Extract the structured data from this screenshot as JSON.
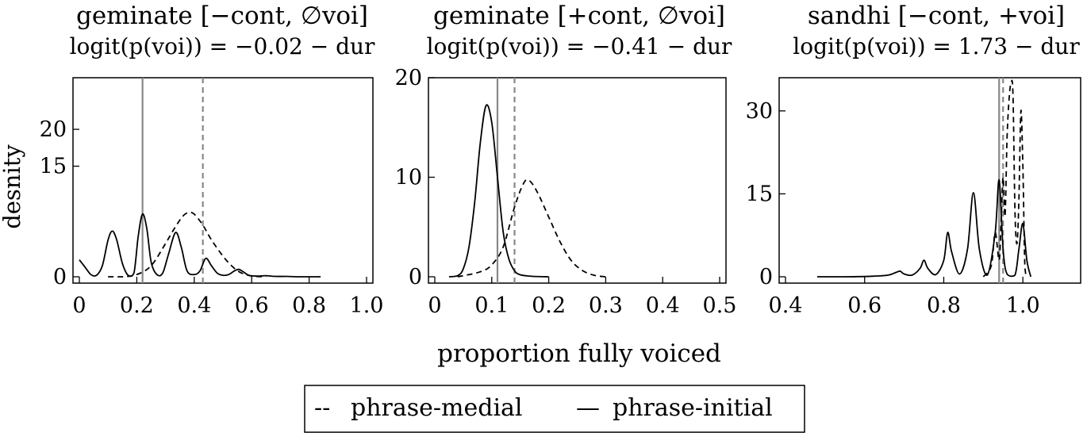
{
  "chart_data": [
    {
      "type": "line",
      "title": "geminate [−cont, ∅voi]",
      "subtitle": "logit(p(voi)) = −0.02 − dur",
      "xlabel": "",
      "ylabel": "desnity",
      "xlim": [
        0,
        1.0
      ],
      "ylim": [
        0,
        27
      ],
      "xticks": [
        "0",
        "0.2",
        "0.4",
        "0.6",
        "0.8",
        "1.0"
      ],
      "yticks": [
        "0",
        "15",
        "20"
      ],
      "vlines": [
        {
          "x": 0.22,
          "style": "solid",
          "color": "#888888"
        },
        {
          "x": 0.43,
          "style": "dashed",
          "color": "#888888"
        }
      ],
      "series": [
        {
          "style": "dashed",
          "x": [
            0.1,
            0.15,
            0.2,
            0.25,
            0.3,
            0.33,
            0.36,
            0.38,
            0.4,
            0.43,
            0.46,
            0.5,
            0.53,
            0.56,
            0.6,
            0.65
          ],
          "y": [
            0,
            0,
            0.3,
            1.5,
            4.5,
            6.5,
            8.2,
            8.7,
            8.5,
            7.0,
            5.0,
            2.8,
            1.5,
            0.6,
            0.1,
            0
          ]
        },
        {
          "style": "solid",
          "x": [
            0.0,
            0.02,
            0.04,
            0.06,
            0.08,
            0.1,
            0.115,
            0.13,
            0.15,
            0.17,
            0.19,
            0.205,
            0.22,
            0.235,
            0.25,
            0.27,
            0.29,
            0.31,
            0.335,
            0.355,
            0.375,
            0.4,
            0.42,
            0.44,
            0.46,
            0.48,
            0.5,
            0.52,
            0.54,
            0.555,
            0.57,
            0.59,
            0.62,
            0.65,
            0.68,
            0.72,
            0.76,
            0.8,
            0.84
          ],
          "y": [
            2.3,
            1.3,
            0.3,
            0.2,
            1.5,
            5.0,
            6.2,
            5.0,
            1.8,
            0.2,
            0.5,
            5.5,
            8.5,
            6.5,
            2.0,
            0.3,
            0.5,
            3.0,
            6.0,
            4.0,
            0.8,
            0.3,
            0.8,
            2.5,
            1.5,
            0.5,
            0.2,
            0.3,
            0.8,
            1.0,
            0.7,
            0.2,
            0.1,
            0.15,
            0.05,
            0.05,
            0,
            0,
            0
          ]
        }
      ]
    },
    {
      "type": "line",
      "title": "geminate [+cont, ∅voi]",
      "subtitle": "logit(p(voi)) = −0.41 − dur",
      "xlabel": "",
      "ylabel": "",
      "xlim": [
        0,
        0.5
      ],
      "ylim": [
        0,
        20
      ],
      "xticks": [
        "0",
        "0.1",
        "0.2",
        "0.3",
        "0.4",
        "0.5"
      ],
      "yticks": [
        "0",
        "10",
        "20"
      ],
      "vlines": [
        {
          "x": 0.11,
          "style": "solid",
          "color": "#888888"
        },
        {
          "x": 0.14,
          "style": "dashed",
          "color": "#888888"
        }
      ],
      "series": [
        {
          "style": "dashed",
          "x": [
            0.04,
            0.08,
            0.1,
            0.12,
            0.14,
            0.155,
            0.165,
            0.18,
            0.2,
            0.22,
            0.24,
            0.26,
            0.28,
            0.3
          ],
          "y": [
            0,
            0.5,
            1.2,
            3.0,
            7.0,
            9.3,
            9.7,
            8.5,
            6.0,
            3.5,
            1.6,
            0.6,
            0.15,
            0
          ]
        },
        {
          "style": "solid",
          "x": [
            0.025,
            0.04,
            0.05,
            0.06,
            0.07,
            0.08,
            0.09,
            0.1,
            0.11,
            0.12,
            0.13,
            0.14,
            0.15,
            0.17,
            0.2
          ],
          "y": [
            0,
            0.1,
            0.8,
            3.0,
            7.5,
            13.5,
            17.2,
            15.5,
            10.0,
            4.5,
            1.8,
            0.6,
            0.2,
            0.05,
            0
          ]
        }
      ]
    },
    {
      "type": "line",
      "title": "sandhi [−cont, +voi]",
      "subtitle": "logit(p(voi)) = 1.73 − dur",
      "xlabel": "",
      "ylabel": "",
      "xlim": [
        0.4,
        1.13
      ],
      "ylim": [
        0,
        36
      ],
      "xticks": [
        "0.4",
        "0.6",
        "0.8",
        "1.0"
      ],
      "yticks": [
        "0",
        "15",
        "30"
      ],
      "vlines": [
        {
          "x": 0.94,
          "style": "solid",
          "color": "#888888"
        },
        {
          "x": 0.95,
          "style": "dashed",
          "color": "#888888"
        }
      ],
      "series": [
        {
          "style": "dashed",
          "x": [
            0.9,
            0.92,
            0.93,
            0.94,
            0.945,
            0.95,
            0.955,
            0.96,
            0.965,
            0.97,
            0.975,
            0.98,
            0.985,
            0.99,
            0.995,
            1.0,
            1.005,
            1.01
          ],
          "y": [
            0,
            2.0,
            8.0,
            3.0,
            10.0,
            18.0,
            11.0,
            25.0,
            32.0,
            35.0,
            33.0,
            12.0,
            6.0,
            14.0,
            30.0,
            20.0,
            2.0,
            0
          ]
        },
        {
          "style": "solid",
          "x": [
            0.48,
            0.55,
            0.62,
            0.66,
            0.68,
            0.69,
            0.7,
            0.72,
            0.74,
            0.75,
            0.76,
            0.78,
            0.8,
            0.81,
            0.82,
            0.84,
            0.86,
            0.875,
            0.89,
            0.91,
            0.93,
            0.94,
            0.95,
            0.96,
            0.98,
            0.99,
            1.0,
            1.01,
            1.02
          ],
          "y": [
            0,
            0,
            0.1,
            0.3,
            0.8,
            1.0,
            0.5,
            0.3,
            1.5,
            3.0,
            1.5,
            0.4,
            3.0,
            8.0,
            4.5,
            0.5,
            5.0,
            15.2,
            5.0,
            0.3,
            8.0,
            17.5,
            5.0,
            0.5,
            0.3,
            5.0,
            9.6,
            3.0,
            0
          ]
        }
      ]
    }
  ],
  "shared": {
    "xlabel": "proportion fully voiced",
    "legend": {
      "placement": "bottom-center",
      "entries": [
        {
          "marker": "--",
          "label": "phrase-medial"
        },
        {
          "marker": "—",
          "label": "phrase-initial"
        }
      ]
    }
  }
}
